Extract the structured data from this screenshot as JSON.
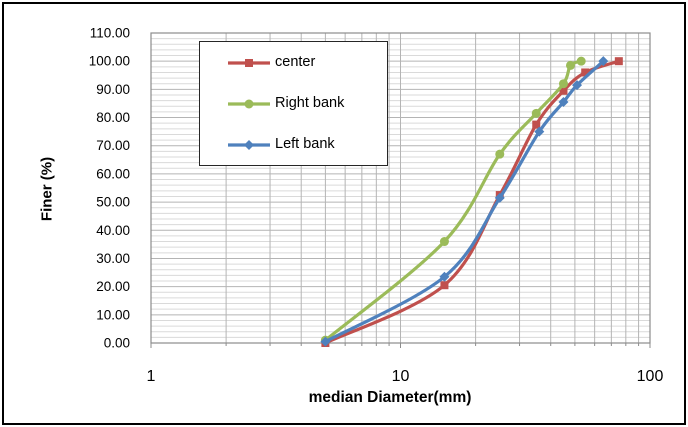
{
  "chart_data": {
    "type": "line",
    "title": "",
    "xlabel": "median Diameter(mm)",
    "ylabel": "Finer (%)",
    "x_scale": "log",
    "xlim": [
      1,
      100
    ],
    "ylim": [
      0,
      110
    ],
    "x_ticks": [
      "1",
      "10",
      "100"
    ],
    "y_ticks": [
      "0.00",
      "10.00",
      "20.00",
      "30.00",
      "40.00",
      "50.00",
      "60.00",
      "70.00",
      "80.00",
      "90.00",
      "100.00",
      "110.00"
    ],
    "y_major_step": 10,
    "y_minor_step": 2,
    "grid": true,
    "smoothed_lines": true,
    "legend_position": "top-left-inside",
    "series": [
      {
        "name": "center",
        "color": "#C0504D",
        "marker": "square",
        "x": [
          5,
          15,
          25,
          35,
          45,
          55,
          75
        ],
        "y": [
          0,
          20.5,
          52.5,
          77.5,
          89.5,
          96,
          100
        ]
      },
      {
        "name": "Right bank",
        "color": "#9BBB59",
        "marker": "circle",
        "x": [
          5,
          15,
          25,
          35,
          45,
          48,
          53
        ],
        "y": [
          1,
          36,
          67,
          81.5,
          92,
          98.5,
          100
        ]
      },
      {
        "name": "Left bank",
        "color": "#4F81BD",
        "marker": "diamond",
        "x": [
          5,
          15,
          25,
          36,
          45,
          51,
          65
        ],
        "y": [
          0.5,
          23.5,
          51.5,
          75,
          85.5,
          91.5,
          100
        ]
      }
    ]
  }
}
